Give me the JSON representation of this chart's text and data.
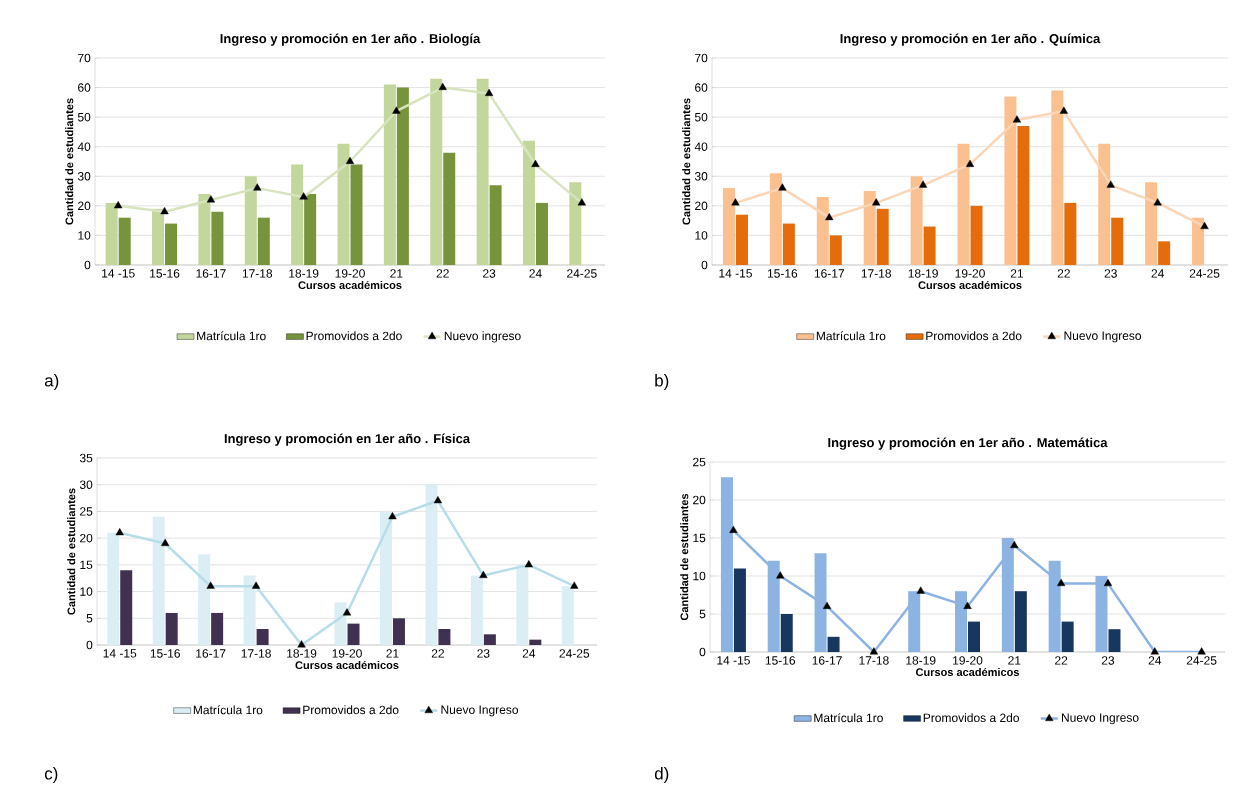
{
  "chart_data": [
    {
      "type": "bar",
      "title": "Ingreso y promoción en 1er año . Biología",
      "xlabel": "Cursos académicos",
      "ylabel": "Cantidad de estudiantes",
      "categories": [
        "14 -15",
        "15-16",
        "16-17",
        "17-18",
        "18-19",
        "19-20",
        "21",
        "22",
        "23",
        "24",
        "24-25"
      ],
      "series": [
        {
          "name": "Matrícula 1ro",
          "color": "#c3d69b",
          "values": [
            21,
            19,
            24,
            30,
            34,
            41,
            61,
            63,
            63,
            42,
            28
          ]
        },
        {
          "name": "Promovidos a 2do",
          "color": "#77933c",
          "values": [
            16,
            14,
            18,
            16,
            24,
            34,
            60,
            38,
            27,
            21,
            null
          ]
        },
        {
          "name": "Nuevo ingreso",
          "type": "line",
          "marker": "triangle",
          "color": "#d7e4bd",
          "values": [
            20,
            18,
            22,
            26,
            23,
            35,
            52,
            60,
            58,
            34,
            21
          ]
        }
      ],
      "ylim": [
        0,
        70
      ],
      "yticks": [
        0,
        10,
        20,
        30,
        40,
        50,
        60,
        70
      ],
      "grid": "y",
      "legend": "bottom",
      "annotations": [
        "a)"
      ]
    },
    {
      "type": "bar",
      "title": "Ingreso y promoción en 1er año . Química",
      "xlabel": "Cursos académicos",
      "ylabel": "Cantidad de estudiantes",
      "categories": [
        "14 -15",
        "15-16",
        "16-17",
        "17-18",
        "18-19",
        "19-20",
        "21",
        "22",
        "23",
        "24",
        "24-25"
      ],
      "series": [
        {
          "name": "Matrícula 1ro",
          "color": "#fac090",
          "values": [
            26,
            31,
            23,
            25,
            30,
            41,
            57,
            59,
            41,
            28,
            16
          ]
        },
        {
          "name": "Promovidos a 2do",
          "color": "#e46c0a",
          "values": [
            17,
            14,
            10,
            19,
            13,
            20,
            47,
            21,
            16,
            8,
            null
          ]
        },
        {
          "name": "Nuevo Ingreso",
          "type": "line",
          "marker": "triangle",
          "color": "#fcd5b5",
          "values": [
            21,
            26,
            16,
            21,
            27,
            34,
            49,
            52,
            27,
            21,
            13
          ]
        }
      ],
      "ylim": [
        0,
        70
      ],
      "yticks": [
        0,
        10,
        20,
        30,
        40,
        50,
        60,
        70
      ],
      "grid": "y",
      "legend": "bottom",
      "annotations": [
        "b)"
      ]
    },
    {
      "type": "bar",
      "title": "Ingreso y promoción en 1er  año . Física",
      "xlabel": "Cursos académicos",
      "ylabel": "Cantidad de estudiantes",
      "categories": [
        "14 -15",
        "15-16",
        "16-17",
        "17-18",
        "18-19",
        "19-20",
        "21",
        "22",
        "23",
        "24",
        "24-25"
      ],
      "series": [
        {
          "name": "Matrícula 1ro",
          "color": "#dbeef4",
          "values": [
            21,
            24,
            17,
            13,
            null,
            8,
            25,
            30,
            13,
            15,
            11
          ]
        },
        {
          "name": "Promovidos a 2do",
          "color": "#403151",
          "values": [
            14,
            6,
            6,
            3,
            null,
            4,
            5,
            3,
            2,
            1,
            null
          ]
        },
        {
          "name": "Nuevo Ingreso",
          "type": "line",
          "marker": "triangle",
          "color": "#b7dde8",
          "values": [
            21,
            19,
            11,
            11,
            0,
            6,
            24,
            27,
            13,
            15,
            11
          ]
        }
      ],
      "ylim": [
        0,
        35
      ],
      "yticks": [
        0,
        5,
        10,
        15,
        20,
        25,
        30,
        35
      ],
      "grid": "y",
      "legend": "bottom",
      "annotations": [
        "c)"
      ]
    },
    {
      "type": "bar",
      "title": "Ingreso y promoción en 1er  año . Matemática",
      "xlabel": "Cursos académicos",
      "ylabel": "Cantidad de estudiantes",
      "categories": [
        "14 -15",
        "15-16",
        "16-17",
        "17-18",
        "18-19",
        "19-20",
        "21",
        "22",
        "23",
        "24",
        "24-25"
      ],
      "series": [
        {
          "name": "Matrícula 1ro",
          "color": "#8db3e2",
          "values": [
            23,
            12,
            13,
            null,
            8,
            8,
            15,
            12,
            10,
            null,
            null
          ]
        },
        {
          "name": "Promovidos a 2do",
          "color": "#17375e",
          "values": [
            11,
            5,
            2,
            null,
            null,
            4,
            8,
            4,
            3,
            null,
            null
          ]
        },
        {
          "name": "Nuevo Ingreso",
          "type": "line",
          "marker": "triangle",
          "color": "#8db3e2",
          "values": [
            16,
            10,
            6,
            0,
            8,
            6,
            14,
            9,
            9,
            0,
            0
          ]
        }
      ],
      "ylim": [
        0,
        25
      ],
      "yticks": [
        0,
        5,
        10,
        15,
        20,
        25
      ],
      "grid": "y",
      "legend": "bottom",
      "annotations": [
        "d)"
      ]
    }
  ]
}
